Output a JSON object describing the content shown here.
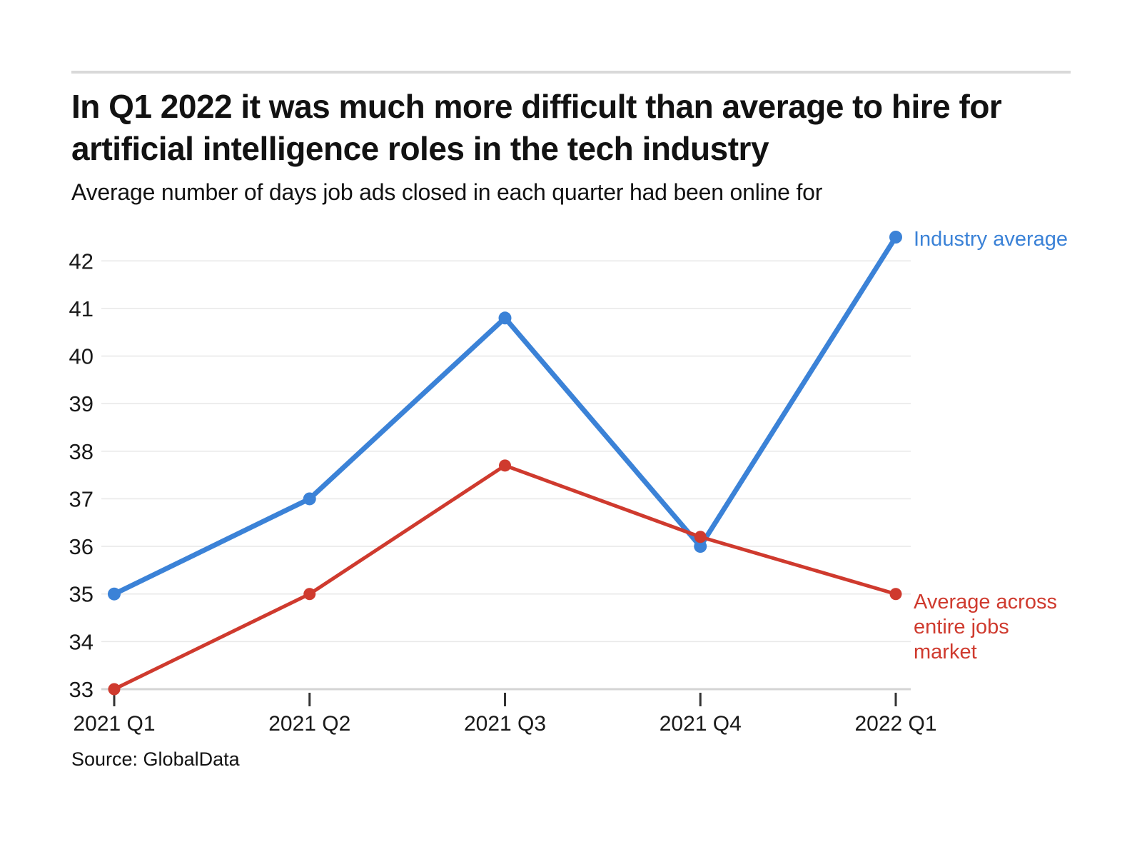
{
  "header": {
    "title": "In Q1 2022 it was much more difficult than average to hire for artificial intelligence roles in the tech industry",
    "subtitle": "Average number of days job ads closed in each quarter had been online for"
  },
  "footer": {
    "source": "Source: GlobalData"
  },
  "colors": {
    "title_text": "#121212",
    "grid": "#e9e9e9",
    "axis": "#d4d4d4",
    "tick": "#333333",
    "axis_text": "#1a1a1a",
    "industry_blue": "#3b82d7",
    "market_red": "#cf3a2e"
  },
  "chart_data": {
    "type": "line",
    "title": "In Q1 2022 it was much more difficult than average to hire for artificial intelligence roles in the tech industry",
    "subtitle": "Average number of days job ads closed in each quarter had been online for",
    "categories": [
      "2021 Q1",
      "2021 Q2",
      "2021 Q3",
      "2021 Q4",
      "2022 Q1"
    ],
    "series": [
      {
        "name": "Industry average",
        "color": "#3b82d7",
        "values": [
          35,
          37,
          40.8,
          36,
          42.5
        ],
        "line_width": 7,
        "point_radius": 9
      },
      {
        "name": "Average across entire jobs market",
        "color": "#cf3a2e",
        "values": [
          33,
          35,
          37.7,
          36.2,
          35
        ],
        "line_width": 5,
        "point_radius": 8.5
      }
    ],
    "xlabel": "",
    "ylabel": "",
    "yticks": [
      33,
      34,
      35,
      36,
      37,
      38,
      39,
      40,
      41,
      42
    ],
    "ylim": [
      33,
      42.5
    ],
    "grid": true,
    "legend_position": "end-of-line",
    "source": "Source: GlobalData"
  }
}
